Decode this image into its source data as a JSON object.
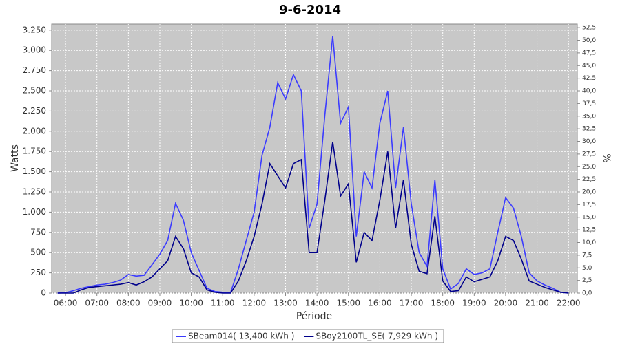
{
  "chart_data": {
    "type": "line",
    "title": "9-6-2014",
    "x_label": "Période",
    "y_label": "Watts",
    "y2_label": "%",
    "x": [
      5.75,
      6,
      6.25,
      6.5,
      6.75,
      7,
      7.25,
      7.5,
      7.75,
      8,
      8.25,
      8.5,
      8.75,
      9,
      9.25,
      9.5,
      9.75,
      10,
      10.25,
      10.5,
      10.75,
      11,
      11.25,
      11.5,
      11.75,
      12,
      12.25,
      12.5,
      12.75,
      13,
      13.25,
      13.5,
      13.75,
      14,
      14.25,
      14.5,
      14.75,
      15,
      15.25,
      15.5,
      15.75,
      16,
      16.25,
      16.5,
      16.75,
      17,
      17.25,
      17.5,
      17.75,
      18,
      18.25,
      18.5,
      18.75,
      19,
      19.25,
      19.5,
      19.75,
      20,
      20.25,
      20.5,
      20.75,
      21,
      21.25,
      21.5,
      21.75,
      22
    ],
    "series": [
      {
        "name": "SBeam014( 13,400 kWh )",
        "color": "#3b3bff",
        "values": [
          0,
          5,
          30,
          60,
          80,
          100,
          110,
          130,
          160,
          230,
          210,
          220,
          350,
          480,
          650,
          1110,
          900,
          500,
          280,
          60,
          20,
          10,
          5,
          300,
          650,
          1000,
          1700,
          2050,
          2600,
          2400,
          2700,
          2500,
          800,
          1100,
          2200,
          3180,
          2100,
          2300,
          700,
          1500,
          1300,
          2100,
          2500,
          1300,
          2050,
          1100,
          500,
          330,
          1400,
          300,
          50,
          120,
          300,
          230,
          250,
          300,
          750,
          1180,
          1050,
          700,
          250,
          150,
          100,
          60,
          10,
          0
        ]
      },
      {
        "name": "SBoy2100TL_SE( 7,929 kWh )",
        "color": "#00008b",
        "values": [
          0,
          0,
          0,
          40,
          70,
          80,
          90,
          100,
          110,
          130,
          100,
          140,
          200,
          300,
          400,
          700,
          550,
          250,
          200,
          40,
          10,
          0,
          0,
          150,
          400,
          700,
          1100,
          1600,
          1450,
          1300,
          1600,
          1650,
          500,
          500,
          1150,
          1870,
          1200,
          1350,
          380,
          750,
          650,
          1150,
          1750,
          800,
          1400,
          600,
          270,
          240,
          950,
          150,
          20,
          30,
          200,
          140,
          170,
          200,
          400,
          700,
          650,
          420,
          150,
          110,
          70,
          40,
          10,
          0
        ]
      }
    ],
    "xlim": [
      5.56,
      22.28
    ],
    "xticks": [
      {
        "value": 6,
        "label": "06:00"
      },
      {
        "value": 7,
        "label": "07:00"
      },
      {
        "value": 8,
        "label": "08:00"
      },
      {
        "value": 9,
        "label": "09:00"
      },
      {
        "value": 10,
        "label": "10:00"
      },
      {
        "value": 11,
        "label": "11:00"
      },
      {
        "value": 12,
        "label": "12:00"
      },
      {
        "value": 13,
        "label": "13:00"
      },
      {
        "value": 14,
        "label": "14:00"
      },
      {
        "value": 15,
        "label": "15:00"
      },
      {
        "value": 16,
        "label": "16:00"
      },
      {
        "value": 17,
        "label": "17:00"
      },
      {
        "value": 18,
        "label": "18:00"
      },
      {
        "value": 19,
        "label": "19:00"
      },
      {
        "value": 20,
        "label": "20:00"
      },
      {
        "value": 21,
        "label": "21:00"
      },
      {
        "value": 22,
        "label": "22:00"
      }
    ],
    "ylim": [
      0,
      3325
    ],
    "yticks": [
      0,
      250,
      500,
      750,
      {
        "value": 1000,
        "label": "1.000"
      },
      {
        "value": 1250,
        "label": "1.250"
      },
      {
        "value": 1500,
        "label": "1.500"
      },
      {
        "value": 1750,
        "label": "1.750"
      },
      {
        "value": 2000,
        "label": "2.000"
      },
      {
        "value": 2250,
        "label": "2.250"
      },
      {
        "value": 2500,
        "label": "2.500"
      },
      {
        "value": 2750,
        "label": "2.750"
      },
      {
        "value": 3000,
        "label": "3.000"
      },
      {
        "value": 3250,
        "label": "3.250"
      }
    ],
    "y2lim": [
      0,
      53.2
    ],
    "y2ticks": [
      {
        "value": 0,
        "label": "0,0"
      },
      {
        "value": 2.5,
        "label": "2,5"
      },
      {
        "value": 5,
        "label": "5,0"
      },
      {
        "value": 7.5,
        "label": "7,5"
      },
      {
        "value": 10,
        "label": "10,0"
      },
      {
        "value": 12.5,
        "label": "12,5"
      },
      {
        "value": 15,
        "label": "15,0"
      },
      {
        "value": 17.5,
        "label": "17,5"
      },
      {
        "value": 20,
        "label": "20,0"
      },
      {
        "value": 22.5,
        "label": "22,5"
      },
      {
        "value": 25,
        "label": "25,0"
      },
      {
        "value": 27.5,
        "label": "27,5"
      },
      {
        "value": 30,
        "label": "30,0"
      },
      {
        "value": 32.5,
        "label": "32,5"
      },
      {
        "value": 35,
        "label": "35,0"
      },
      {
        "value": 37.5,
        "label": "37,5"
      },
      {
        "value": 40,
        "label": "40,0"
      },
      {
        "value": 42.5,
        "label": "42,5"
      },
      {
        "value": 45,
        "label": "45,0"
      },
      {
        "value": 47.5,
        "label": "47,5"
      },
      {
        "value": 50,
        "label": "50,0"
      },
      {
        "value": 52.5,
        "label": "52,5"
      }
    ],
    "grid": true,
    "plot_background": "#c8c8c8",
    "legend": "bottom"
  }
}
